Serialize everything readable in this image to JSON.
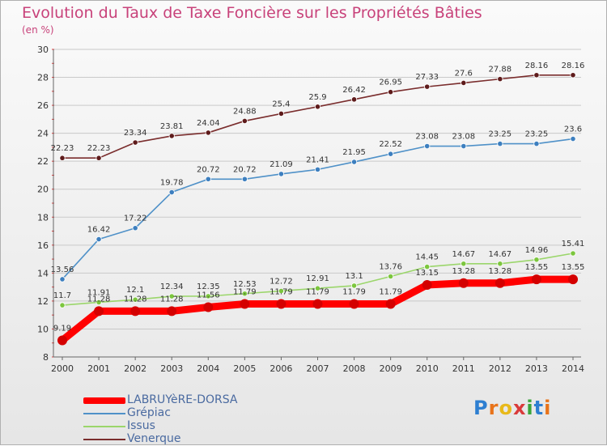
{
  "header": {
    "title": "Evolution du Taux de Taxe Foncière sur les Propriétés Bâties",
    "subtitle": "(en %)"
  },
  "brand": {
    "logo_text": "Proxiti"
  },
  "chart_data": {
    "type": "line",
    "title": "Evolution du Taux de Taxe Foncière sur les Propriétés Bâties",
    "ylabel": "(en %)",
    "xlabel": "",
    "ylim": [
      8,
      30
    ],
    "yticks": [
      8,
      10,
      12,
      14,
      16,
      18,
      20,
      22,
      24,
      26,
      28,
      30
    ],
    "grid": "horizontal",
    "legend_position": "bottom-left",
    "x": [
      "2000",
      "2001",
      "2002",
      "2003",
      "2004",
      "2005",
      "2006",
      "2007",
      "2008",
      "2009",
      "2010",
      "2011",
      "2012",
      "2013",
      "2014"
    ],
    "series": [
      {
        "name": "Venerque",
        "color": "#7a2d2d",
        "marker": "#5e1b1b",
        "values": [
          22.23,
          22.23,
          23.34,
          23.81,
          24.04,
          24.88,
          25.4,
          25.9,
          26.42,
          26.95,
          27.33,
          27.6,
          27.88,
          28.16,
          28.16
        ],
        "labels": [
          "22.23",
          "22.23",
          "23.34",
          "23.81",
          "24.04",
          "24.88",
          "25.4",
          "25.9",
          "26.42",
          "26.95",
          "27.33",
          "27.6",
          "27.88",
          "28.16",
          "28.16"
        ]
      },
      {
        "name": "Grépiac",
        "color": "#4f91c8",
        "marker": "#3d7fbf",
        "values": [
          13.56,
          16.42,
          17.22,
          19.78,
          20.72,
          20.72,
          21.09,
          21.41,
          21.95,
          22.52,
          23.08,
          23.08,
          23.25,
          23.25,
          23.6
        ],
        "labels": [
          "13.56",
          "16.42",
          "17.22",
          "19.78",
          "20.72",
          "20.72",
          "21.09",
          "21.41",
          "21.95",
          "22.52",
          "23.08",
          "23.08",
          "23.25",
          "23.25",
          "23.6"
        ]
      },
      {
        "name": "Issus",
        "color": "#9bd66b",
        "marker": "#7cc63e",
        "values": [
          11.7,
          11.91,
          12.1,
          12.34,
          12.35,
          12.53,
          12.72,
          12.91,
          13.1,
          13.76,
          14.45,
          14.67,
          14.67,
          14.96,
          15.41
        ],
        "labels": [
          "11.7",
          "11.91",
          "12.1",
          "12.34",
          "12.35",
          "12.53",
          "12.72",
          "12.91",
          "13.1",
          "13.76",
          "14.45",
          "14.67",
          "14.67",
          "14.96",
          "15.41"
        ]
      },
      {
        "name": "LABRUYèRE-DORSA",
        "color": "#ff0000",
        "marker": "#d40000",
        "values": [
          9.19,
          11.28,
          11.28,
          11.28,
          11.56,
          11.79,
          11.79,
          11.79,
          11.79,
          11.79,
          13.15,
          13.28,
          13.28,
          13.55,
          13.55
        ],
        "labels": [
          "9.19",
          "11.28",
          "11.28",
          "11.28",
          "11.56",
          "11.79",
          "11.79",
          "11.79",
          "11.79",
          "11.79",
          "13.15",
          "13.28",
          "13.28",
          "13.55",
          "13.55"
        ]
      }
    ],
    "legend": [
      "LABRUYèRE-DORSA",
      "Grépiac",
      "Issus",
      "Venerque"
    ]
  }
}
